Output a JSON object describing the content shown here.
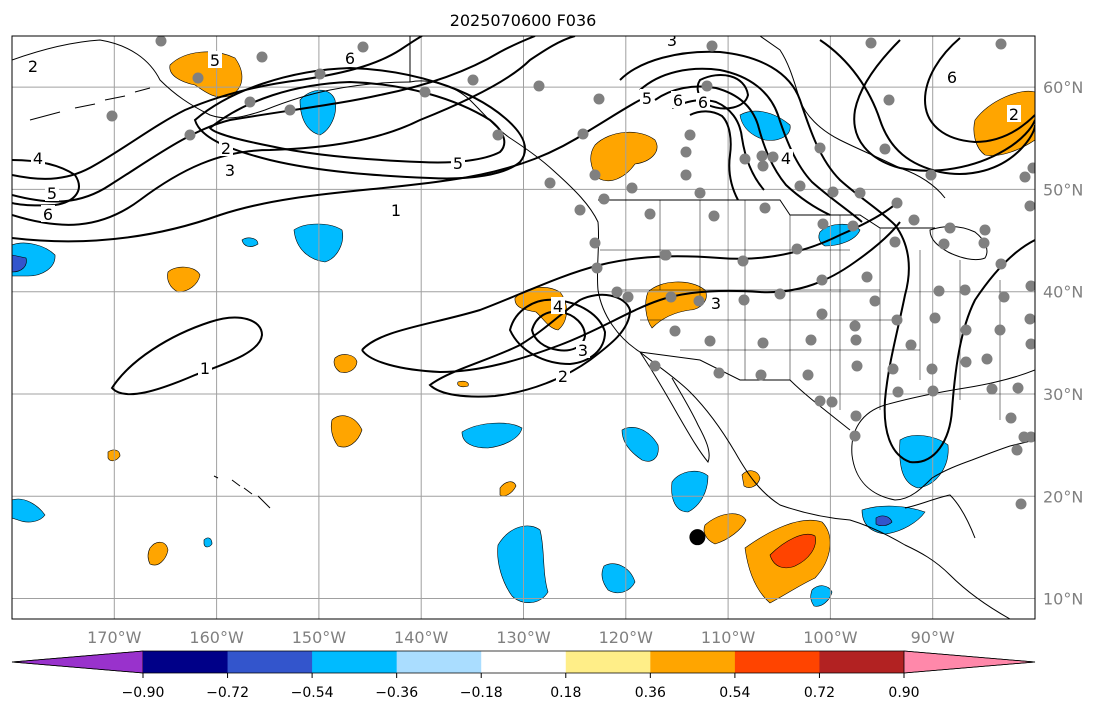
{
  "figure": {
    "title": "2025070600 F036",
    "projection": "plate-carree",
    "extent": {
      "lon_min": -180,
      "lon_max": -80,
      "lat_min": 8,
      "lat_max": 65
    },
    "gridlines": true,
    "grid_color": "#a0a0a0",
    "land_outline_color": "#000000"
  },
  "axes": {
    "lon_ticks": [
      {
        "lon": -170,
        "label": "170°W"
      },
      {
        "lon": -160,
        "label": "160°W"
      },
      {
        "lon": -150,
        "label": "150°W"
      },
      {
        "lon": -140,
        "label": "140°W"
      },
      {
        "lon": -130,
        "label": "130°W"
      },
      {
        "lon": -120,
        "label": "120°W"
      },
      {
        "lon": -110,
        "label": "110°W"
      },
      {
        "lon": -100,
        "label": "100°W"
      },
      {
        "lon": -90,
        "label": "90°W"
      }
    ],
    "lat_ticks": [
      {
        "lat": 10,
        "label": "10°N"
      },
      {
        "lat": 20,
        "label": "20°N"
      },
      {
        "lat": 30,
        "label": "30°N"
      },
      {
        "lat": 40,
        "label": "40°N"
      },
      {
        "lat": 50,
        "label": "50°N"
      },
      {
        "lat": 60,
        "label": "60°N"
      }
    ]
  },
  "colorbar": {
    "orientation": "horizontal",
    "extend": "both",
    "under_color": "#9932cc",
    "over_color": "#ff88aa",
    "bins": [
      {
        "color": "#000088"
      },
      {
        "color": "#3355cc"
      },
      {
        "color": "#00bbff"
      },
      {
        "color": "#aaddff"
      },
      {
        "color": "#ffffff"
      },
      {
        "color": "#ffee88"
      },
      {
        "color": "#ffa500"
      },
      {
        "color": "#ff4400"
      },
      {
        "color": "#b22222"
      }
    ],
    "tick_labels": [
      "−0.90",
      "−0.72",
      "−0.54",
      "−0.36",
      "−0.18",
      "0.18",
      "0.36",
      "0.54",
      "0.72",
      "0.90"
    ]
  },
  "contour_labels": [
    "2",
    "5",
    "6",
    "3",
    "5",
    "6",
    "4",
    "5",
    "6",
    "6",
    "4",
    "5",
    "3",
    "3",
    "2",
    "1",
    "1",
    "4",
    "3",
    "2",
    "2",
    "6",
    "5"
  ],
  "marker": {
    "lon": -113,
    "lat": 16
  }
}
